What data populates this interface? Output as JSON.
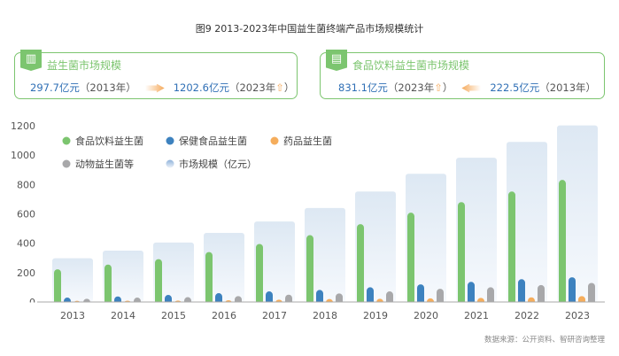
{
  "title": "图9 2013-2023年中国益生菌终端产品市场规模统计",
  "card1": {
    "icon": "chart-growth-icon",
    "title": "益生菌市场规模",
    "from_value": "297.7亿元",
    "from_year": "（2013年）",
    "to_value": "1202.6亿元",
    "to_year": "（2023年",
    "to_close": "）",
    "up_symbol": "⇧"
  },
  "card2": {
    "icon": "document-chart-icon",
    "title": "食品饮料益生菌市场规模",
    "to_value": "831.1亿元",
    "to_year": "（2023年",
    "to_close": "）",
    "from_value": "222.5亿元",
    "from_year": "（2013年）",
    "up_symbol": "⇧"
  },
  "source": "数据来源：公开资料、智研咨询整理",
  "chart_data": {
    "type": "bar",
    "title": "图9 2013-2023年中国益生菌终端产品市场规模统计",
    "categories": [
      "2013",
      "2014",
      "2015",
      "2016",
      "2017",
      "2018",
      "2019",
      "2020",
      "2021",
      "2022",
      "2023"
    ],
    "ylim": [
      0,
      1200
    ],
    "yticks": [
      "0",
      "200",
      "400",
      "600",
      "800",
      "1000",
      "1200"
    ],
    "legend_position": "top-left",
    "series": [
      {
        "name": "市场规模（亿元）",
        "color": "#dce7f3",
        "values": [
          297.7,
          350,
          405,
          470,
          548,
          640,
          752,
          873,
          982,
          1090,
          1202.6
        ]
      },
      {
        "name": "食品饮料益生菌",
        "color": "#7cc56f",
        "values": [
          222.5,
          255,
          292,
          340,
          395,
          455,
          530,
          608,
          680,
          752,
          831.1
        ]
      },
      {
        "name": "保健食品益生菌",
        "color": "#3d82bf",
        "values": [
          30,
          38,
          48,
          60,
          72,
          82,
          100,
          120,
          137,
          155,
          168
        ]
      },
      {
        "name": "药品益生菌",
        "color": "#f5ad5c",
        "values": [
          8,
          9,
          10,
          12,
          16,
          20,
          22,
          25,
          28,
          32,
          40
        ]
      },
      {
        "name": "动物益生菌等",
        "color": "#a8a8aa",
        "values": [
          22,
          30,
          33,
          40,
          50,
          58,
          72,
          90,
          100,
          115,
          130
        ]
      }
    ]
  }
}
